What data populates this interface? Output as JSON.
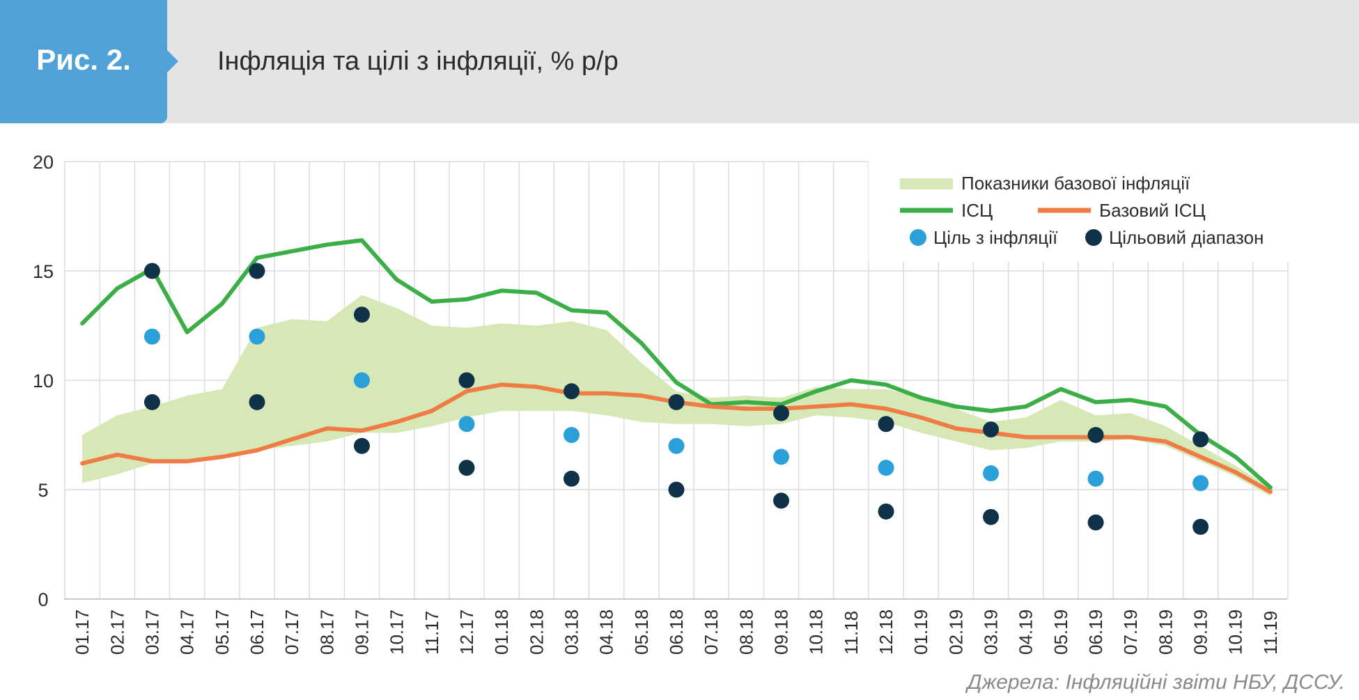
{
  "figure": {
    "number": "Рис. 2.",
    "title": "Інфляція та цілі з інфляції, % р/р",
    "source": "Джерела: Інфляційні звіти НБУ, ДССУ."
  },
  "colors": {
    "band": "#d5e8b6",
    "cpi": "#3cae48",
    "core": "#ef7b45",
    "target": "#2a9fd8",
    "range": "#0f3249",
    "header_bg": "#e3e4e6",
    "badge_bg": "#4fa1d8"
  },
  "legend": {
    "band": "Показники базової інфляції",
    "cpi": "ІСЦ",
    "core": "Базовий ІСЦ",
    "target": "Ціль з інфляції",
    "range": "Цільовий діапазон"
  },
  "chart_data": {
    "type": "line",
    "ylim": [
      0,
      20
    ],
    "yticks": [
      0,
      5,
      10,
      15,
      20
    ],
    "grid": true,
    "legend_position": "top-right",
    "categories": [
      "01.17",
      "02.17",
      "03.17",
      "04.17",
      "05.17",
      "06.17",
      "07.17",
      "08.17",
      "09.17",
      "10.17",
      "11.17",
      "12.17",
      "01.18",
      "02.18",
      "03.18",
      "04.18",
      "05.18",
      "06.18",
      "07.18",
      "08.18",
      "09.18",
      "10.18",
      "11.18",
      "12.18",
      "01.19",
      "02.19",
      "03.19",
      "04.19",
      "05.19",
      "06.19",
      "07.19",
      "08.19",
      "09.19",
      "10.19",
      "11.19"
    ],
    "band": {
      "name": "Показники базової інфляції",
      "lower": [
        5.3,
        5.7,
        6.2,
        6.4,
        6.5,
        6.8,
        7.0,
        7.2,
        7.6,
        7.6,
        7.9,
        8.3,
        8.6,
        8.6,
        8.6,
        8.4,
        8.1,
        8.0,
        8.0,
        7.9,
        8.0,
        8.4,
        8.3,
        8.1,
        7.6,
        7.2,
        6.8,
        6.9,
        7.2,
        7.2,
        7.3,
        7.0,
        6.3,
        5.6,
        4.7
      ],
      "upper": [
        7.5,
        8.4,
        8.8,
        9.3,
        9.6,
        12.4,
        12.8,
        12.7,
        13.9,
        13.3,
        12.5,
        12.4,
        12.6,
        12.5,
        12.7,
        12.3,
        10.8,
        9.5,
        9.2,
        9.3,
        9.2,
        9.7,
        9.6,
        9.6,
        9.2,
        8.7,
        8.1,
        8.3,
        9.1,
        8.4,
        8.5,
        7.9,
        7.0,
        6.1,
        5.1
      ]
    },
    "series": [
      {
        "name": "ІСЦ",
        "values": [
          12.6,
          14.2,
          15.1,
          12.2,
          13.5,
          15.6,
          15.9,
          16.2,
          16.4,
          14.6,
          13.6,
          13.7,
          14.1,
          14.0,
          13.2,
          13.1,
          11.7,
          9.9,
          8.9,
          9.0,
          8.9,
          9.5,
          10.0,
          9.8,
          9.2,
          8.8,
          8.6,
          8.8,
          9.6,
          9.0,
          9.1,
          8.8,
          7.5,
          6.5,
          5.1
        ]
      },
      {
        "name": "Базовий ІСЦ",
        "values": [
          6.2,
          6.6,
          6.3,
          6.3,
          6.5,
          6.8,
          7.3,
          7.8,
          7.7,
          8.1,
          8.6,
          9.5,
          9.8,
          9.7,
          9.4,
          9.4,
          9.3,
          9.0,
          8.8,
          8.7,
          8.7,
          8.8,
          8.9,
          8.7,
          8.3,
          7.8,
          7.6,
          7.4,
          7.4,
          7.4,
          7.4,
          7.2,
          6.5,
          5.8,
          4.9
        ]
      }
    ],
    "targets": {
      "name": "Ціль з інфляції",
      "points": [
        {
          "x": "03.17",
          "y": 12
        },
        {
          "x": "06.17",
          "y": 12
        },
        {
          "x": "09.17",
          "y": 10
        },
        {
          "x": "12.17",
          "y": 8
        },
        {
          "x": "03.18",
          "y": 7.5
        },
        {
          "x": "06.18",
          "y": 7
        },
        {
          "x": "09.18",
          "y": 6.5
        },
        {
          "x": "12.18",
          "y": 6
        },
        {
          "x": "03.19",
          "y": 5.75
        },
        {
          "x": "06.19",
          "y": 5.5
        },
        {
          "x": "09.19",
          "y": 5.3
        }
      ]
    },
    "target_range": {
      "name": "Цільовий діапазон",
      "points": [
        {
          "x": "03.17",
          "low": 9,
          "high": 15
        },
        {
          "x": "06.17",
          "low": 9,
          "high": 15
        },
        {
          "x": "09.17",
          "low": 7,
          "high": 13
        },
        {
          "x": "12.17",
          "low": 6,
          "high": 10
        },
        {
          "x": "03.18",
          "low": 5.5,
          "high": 9.5
        },
        {
          "x": "06.18",
          "low": 5,
          "high": 9
        },
        {
          "x": "09.18",
          "low": 4.5,
          "high": 8.5
        },
        {
          "x": "12.18",
          "low": 4,
          "high": 8
        },
        {
          "x": "03.19",
          "low": 3.75,
          "high": 7.75
        },
        {
          "x": "06.19",
          "low": 3.5,
          "high": 7.5
        },
        {
          "x": "09.19",
          "low": 3.3,
          "high": 7.3
        }
      ]
    }
  }
}
